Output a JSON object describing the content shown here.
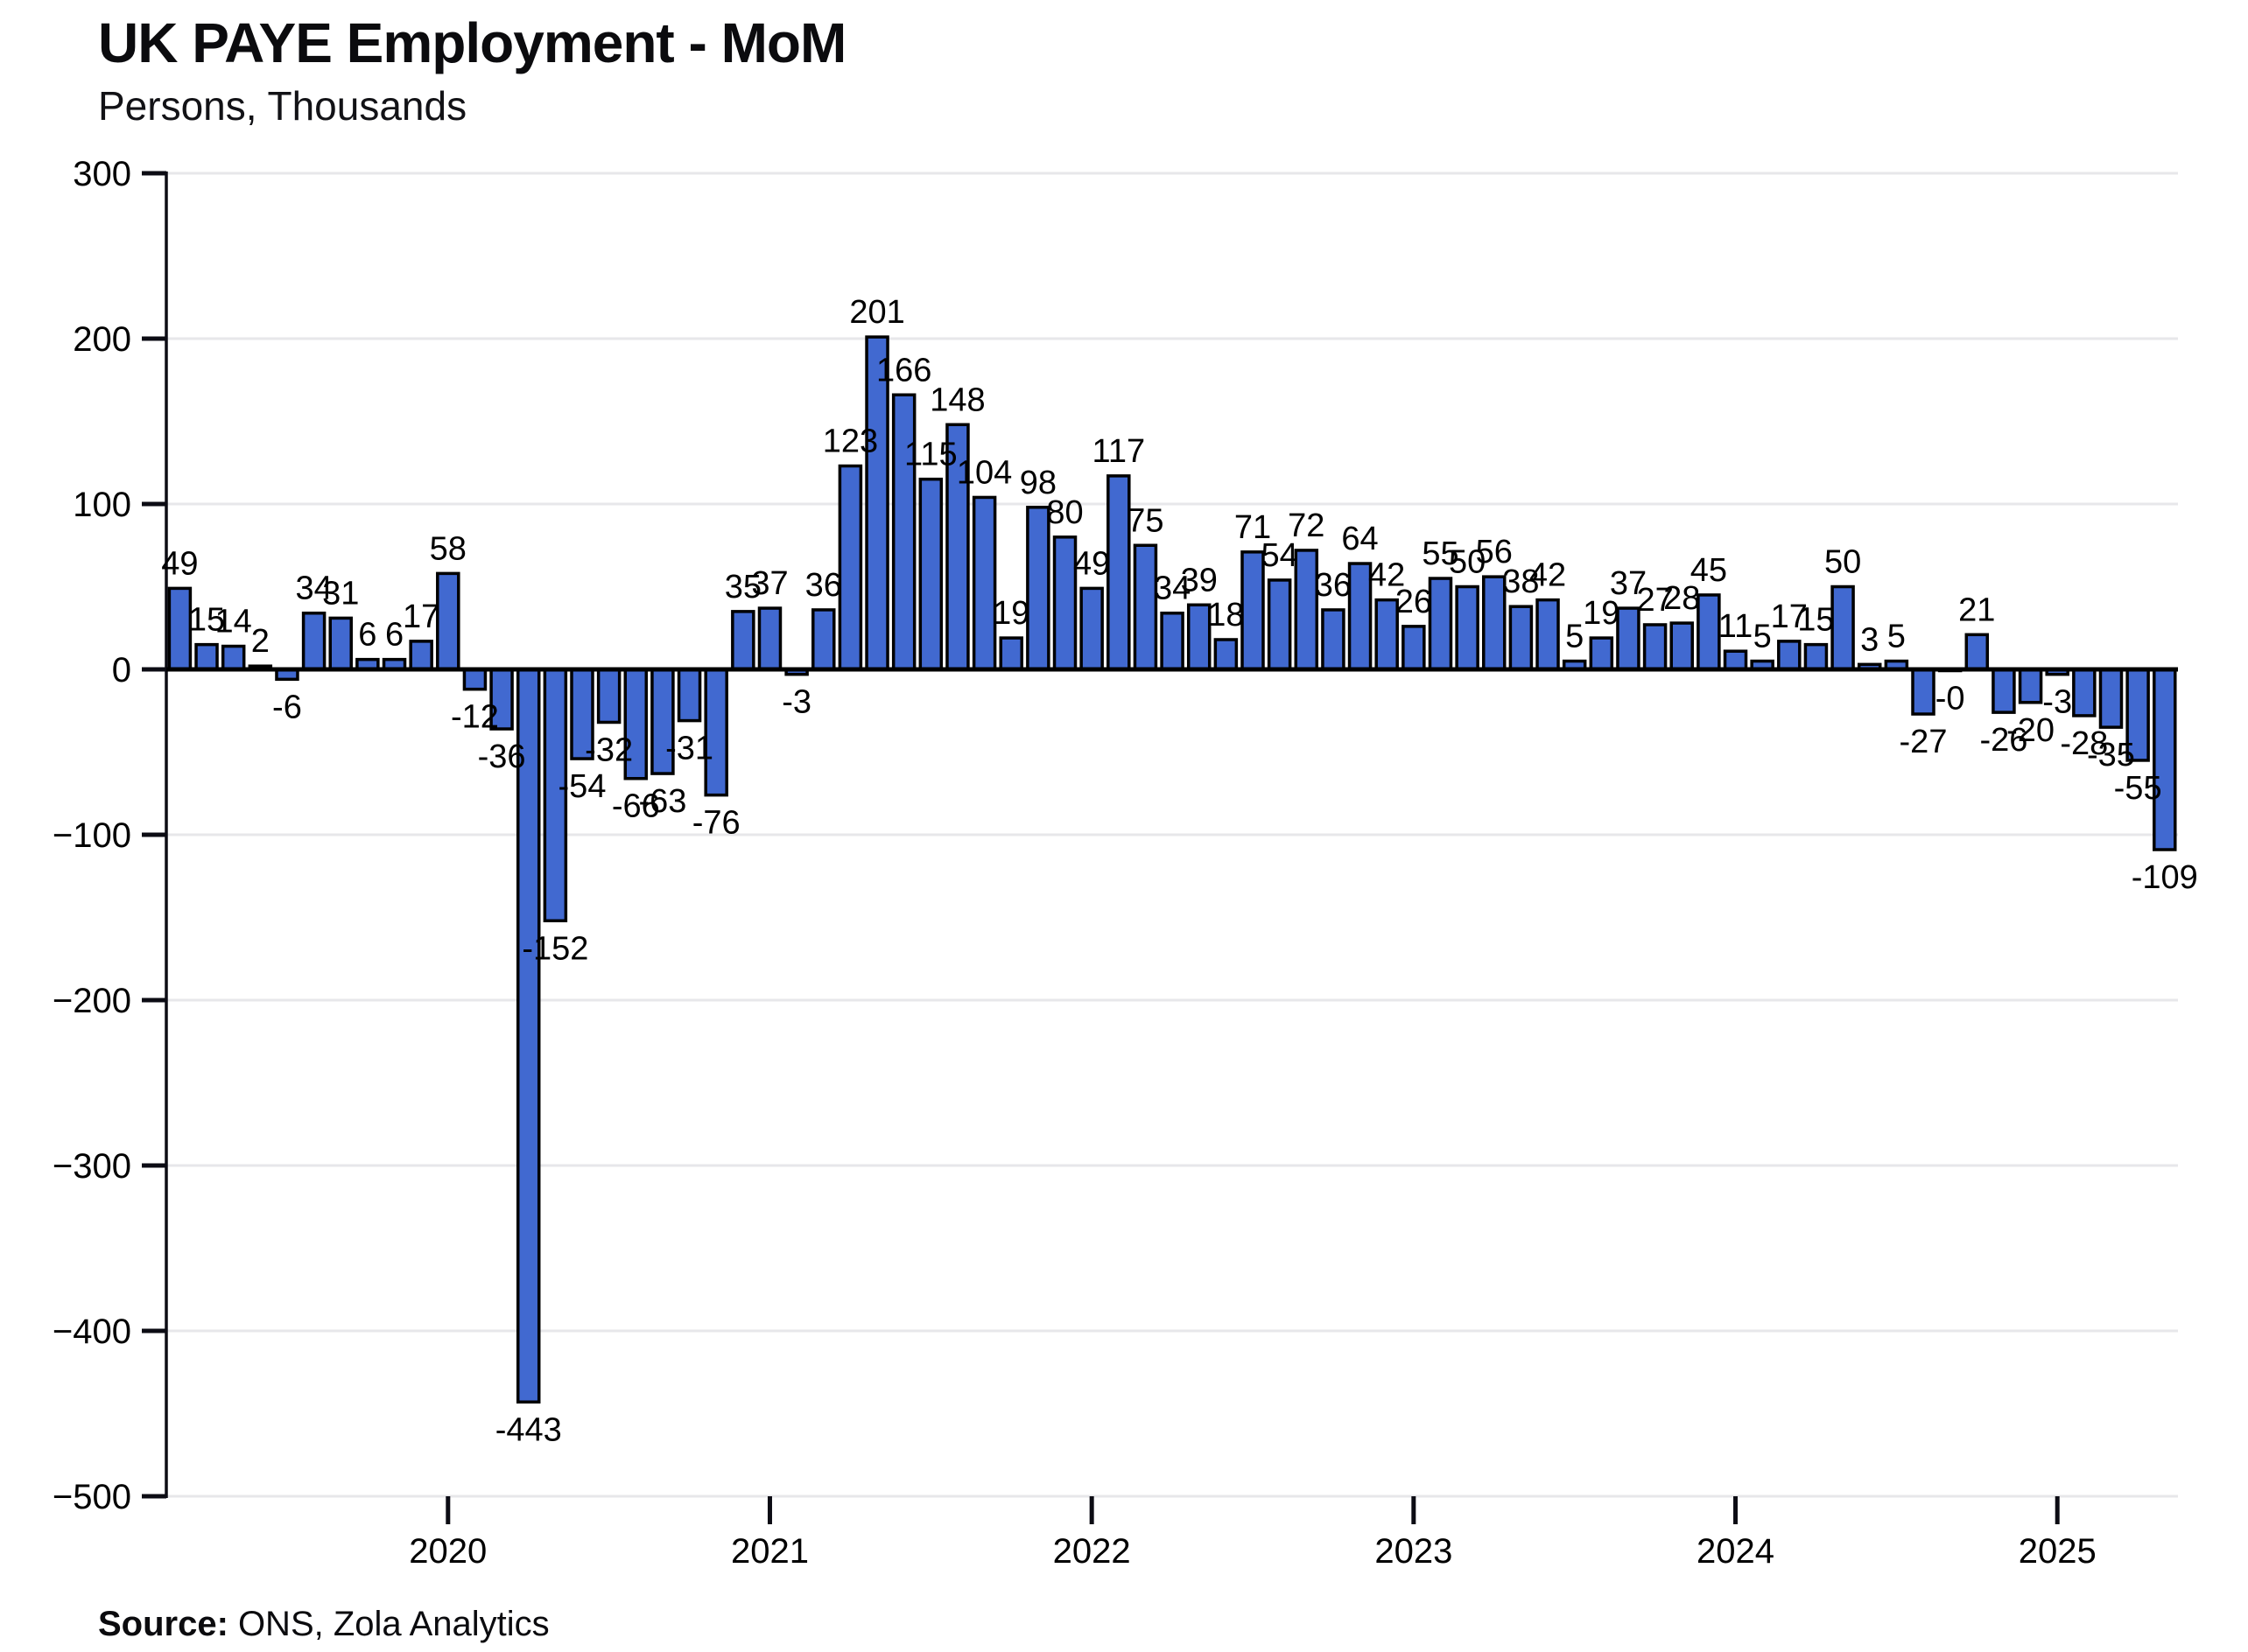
{
  "chart_data": {
    "type": "bar",
    "title": "UK PAYE Employment - MoM",
    "subtitle": "Persons, Thousands",
    "source_label": "Source:",
    "source_text": "ONS, Zola Analytics",
    "x_interval": "monthly",
    "x_start_month": "2019-03",
    "x_tick_labels": [
      "2020",
      "2021",
      "2022",
      "2023",
      "2024",
      "2025"
    ],
    "ylim": [
      -500,
      300
    ],
    "y_ticks": [
      300,
      200,
      100,
      0,
      -100,
      -200,
      -300,
      -400,
      -500
    ],
    "y_tick_labels": [
      "300",
      "200",
      "100",
      "0",
      "−100",
      "−200",
      "−300",
      "−400",
      "−500"
    ],
    "grid": true,
    "legend": "none",
    "bar_color": "#4169d0",
    "bar_edge_color": "#000000",
    "values": [
      49,
      15,
      14,
      2,
      -6,
      34,
      31,
      6,
      6,
      17,
      58,
      -12,
      -36,
      -443,
      -152,
      -54,
      -32,
      -66,
      -63,
      -31,
      -76,
      35,
      37,
      -3,
      36,
      123,
      201,
      166,
      115,
      148,
      104,
      19,
      98,
      80,
      49,
      117,
      75,
      34,
      39,
      18,
      71,
      54,
      72,
      36,
      64,
      42,
      26,
      55,
      50,
      56,
      38,
      42,
      5,
      19,
      37,
      27,
      28,
      45,
      11,
      5,
      17,
      15,
      50,
      3,
      5,
      -27,
      0,
      21,
      -26,
      -20,
      -3,
      -28,
      -35,
      -55,
      -109
    ],
    "bar_labels": [
      "49",
      "15",
      "14",
      "2",
      "-6",
      "34",
      "31",
      "6",
      "6",
      "17",
      "58",
      "-12",
      "-36",
      "-443",
      "-152",
      "-54",
      "-32",
      "-66",
      "-63",
      "-31",
      "-76",
      "35",
      "37",
      "-3",
      "36",
      "123",
      "201",
      "166",
      "115",
      "148",
      "104",
      "19",
      "98",
      "80",
      "49",
      "117",
      "75",
      "34",
      "39",
      "18",
      "71",
      "54",
      "72",
      "36",
      "64",
      "42",
      "26",
      "55",
      "50",
      "56",
      "38",
      "42",
      "5",
      "19",
      "37",
      "27",
      "28",
      "45",
      "11",
      "5",
      "17",
      "15",
      "50",
      "3",
      "5",
      "-27",
      "-0",
      "21",
      "-26",
      "-20",
      "-3",
      "-28",
      "-35",
      "-55",
      "-109"
    ]
  }
}
